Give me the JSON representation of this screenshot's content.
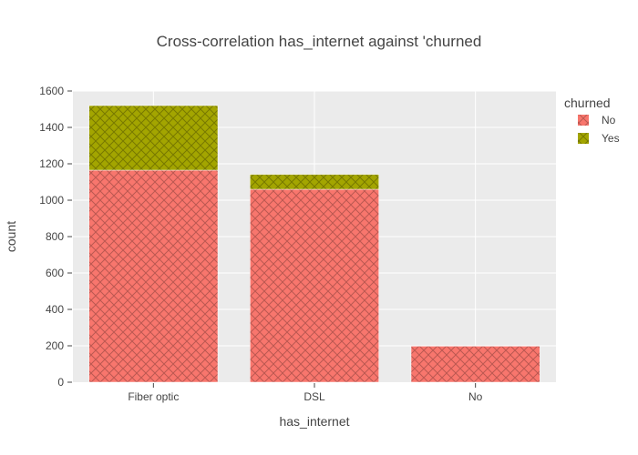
{
  "chart_data": {
    "type": "bar",
    "stacked": true,
    "title": "Cross-correlation has_internet against 'churned",
    "xlabel": "has_internet",
    "ylabel": "count",
    "categories": [
      "Fiber optic",
      "DSL",
      "No"
    ],
    "ylim": [
      0,
      1600
    ],
    "yticks": [
      0,
      200,
      400,
      600,
      800,
      1000,
      1200,
      1400,
      1600
    ],
    "grid": true,
    "legend": {
      "title": "churned",
      "position": "top-right"
    },
    "series": [
      {
        "name": "No",
        "values": [
          1165,
          1060,
          198
        ],
        "color": "#F8766D",
        "pattern": "crosshatch"
      },
      {
        "name": "Yes",
        "values": [
          355,
          82,
          0
        ],
        "color": "#A3A500",
        "pattern": "crosshatch"
      }
    ]
  }
}
